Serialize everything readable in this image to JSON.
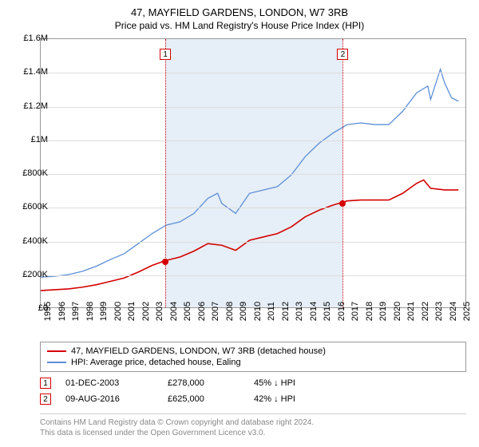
{
  "header": {
    "title": "47, MAYFIELD GARDENS, LONDON, W7 3RB",
    "subtitle": "Price paid vs. HM Land Registry's House Price Index (HPI)"
  },
  "chart": {
    "type": "line",
    "background_color": "#ffffff",
    "grid_color": "#dddddd",
    "border_color": "#999999",
    "highlight_band_color": "#e6eef7",
    "x_min": 1995,
    "x_max": 2025.5,
    "x_ticks": [
      1995,
      1996,
      1997,
      1998,
      1999,
      2000,
      2001,
      2002,
      2003,
      2004,
      2005,
      2006,
      2007,
      2008,
      2009,
      2010,
      2011,
      2012,
      2013,
      2014,
      2015,
      2016,
      2017,
      2018,
      2019,
      2020,
      2021,
      2022,
      2023,
      2024,
      2025
    ],
    "y_min": 0,
    "y_max": 1600000,
    "y_ticks": [
      {
        "v": 0,
        "label": "£0"
      },
      {
        "v": 200000,
        "label": "£200K"
      },
      {
        "v": 400000,
        "label": "£400K"
      },
      {
        "v": 600000,
        "label": "£600K"
      },
      {
        "v": 800000,
        "label": "£800K"
      },
      {
        "v": 1000000,
        "label": "£1M"
      },
      {
        "v": 1200000,
        "label": "£1.2M"
      },
      {
        "v": 1400000,
        "label": "£1.4M"
      },
      {
        "v": 1600000,
        "label": "£1.6M"
      }
    ],
    "label_fontsize": 11,
    "series": [
      {
        "name": "47, MAYFIELD GARDENS, LONDON, W7 3RB (detached house)",
        "color": "#d40000",
        "line_width": 1.6,
        "data": [
          [
            1995,
            100000
          ],
          [
            1996,
            105000
          ],
          [
            1997,
            110000
          ],
          [
            1998,
            120000
          ],
          [
            1999,
            135000
          ],
          [
            2000,
            155000
          ],
          [
            2001,
            175000
          ],
          [
            2002,
            210000
          ],
          [
            2003,
            250000
          ],
          [
            2003.92,
            278000
          ],
          [
            2005,
            300000
          ],
          [
            2006,
            335000
          ],
          [
            2007,
            380000
          ],
          [
            2008,
            370000
          ],
          [
            2009,
            340000
          ],
          [
            2010,
            400000
          ],
          [
            2011,
            420000
          ],
          [
            2012,
            440000
          ],
          [
            2013,
            480000
          ],
          [
            2014,
            540000
          ],
          [
            2015,
            580000
          ],
          [
            2016,
            610000
          ],
          [
            2016.61,
            625000
          ],
          [
            2017,
            635000
          ],
          [
            2018,
            640000
          ],
          [
            2019,
            640000
          ],
          [
            2020,
            640000
          ],
          [
            2021,
            680000
          ],
          [
            2022,
            740000
          ],
          [
            2022.5,
            760000
          ],
          [
            2023,
            710000
          ],
          [
            2024,
            700000
          ],
          [
            2025,
            700000
          ]
        ]
      },
      {
        "name": "HPI: Average price, detached house, Ealing",
        "color": "#5b8fd6",
        "line_width": 1.3,
        "data": [
          [
            1995,
            180000
          ],
          [
            1996,
            185000
          ],
          [
            1997,
            195000
          ],
          [
            1998,
            215000
          ],
          [
            1999,
            245000
          ],
          [
            2000,
            285000
          ],
          [
            2001,
            320000
          ],
          [
            2002,
            380000
          ],
          [
            2003,
            440000
          ],
          [
            2004,
            490000
          ],
          [
            2005,
            510000
          ],
          [
            2006,
            560000
          ],
          [
            2007,
            650000
          ],
          [
            2007.7,
            680000
          ],
          [
            2008,
            620000
          ],
          [
            2009,
            560000
          ],
          [
            2010,
            680000
          ],
          [
            2011,
            700000
          ],
          [
            2012,
            720000
          ],
          [
            2013,
            790000
          ],
          [
            2014,
            900000
          ],
          [
            2015,
            980000
          ],
          [
            2016,
            1040000
          ],
          [
            2016.61,
            1070000
          ],
          [
            2017,
            1090000
          ],
          [
            2018,
            1100000
          ],
          [
            2019,
            1090000
          ],
          [
            2020,
            1090000
          ],
          [
            2021,
            1170000
          ],
          [
            2022,
            1280000
          ],
          [
            2022.8,
            1320000
          ],
          [
            2023,
            1240000
          ],
          [
            2023.7,
            1420000
          ],
          [
            2024,
            1340000
          ],
          [
            2024.5,
            1250000
          ],
          [
            2025,
            1230000
          ]
        ]
      }
    ],
    "markers": [
      {
        "n": "1",
        "x": 2003.92,
        "y": 278000,
        "color": "#d40000"
      },
      {
        "n": "2",
        "x": 2016.61,
        "y": 625000,
        "color": "#d40000"
      }
    ]
  },
  "legend": {
    "items": [
      {
        "color": "#d40000",
        "label": "47, MAYFIELD GARDENS, LONDON, W7 3RB (detached house)"
      },
      {
        "color": "#5b8fd6",
        "label": "HPI: Average price, detached house, Ealing"
      }
    ]
  },
  "transactions": [
    {
      "n": "1",
      "color": "#d40000",
      "date": "01-DEC-2003",
      "price": "£278,000",
      "pct": "45% ↓ HPI"
    },
    {
      "n": "2",
      "color": "#d40000",
      "date": "09-AUG-2016",
      "price": "£625,000",
      "pct": "42% ↓ HPI"
    }
  ],
  "footer": {
    "line1": "Contains HM Land Registry data © Crown copyright and database right 2024.",
    "line2": "This data is licensed under the Open Government Licence v3.0."
  }
}
